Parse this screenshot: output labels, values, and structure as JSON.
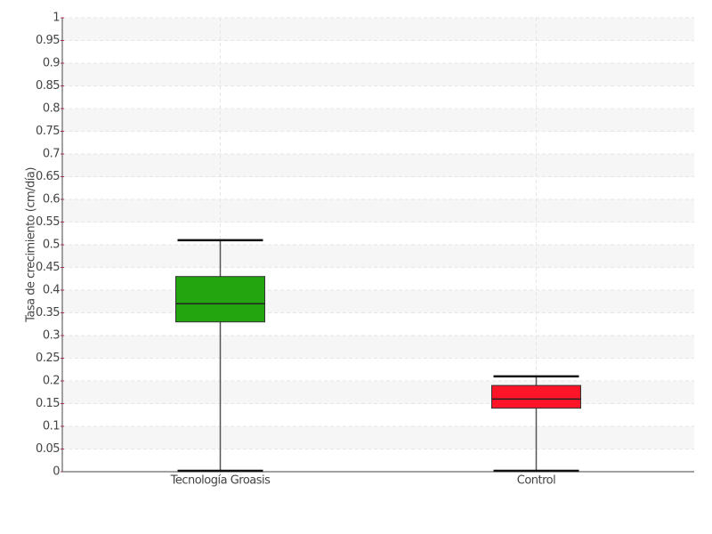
{
  "chart_data": {
    "type": "box",
    "y_label": "Tasa de crecimiento (cm/día)",
    "categories": [
      "Tecnología Groasis",
      "Control"
    ],
    "boxes": [
      {
        "min": 0,
        "q1": 0.33,
        "median": 0.37,
        "q3": 0.43,
        "max": 0.51,
        "color": "#22a50e"
      },
      {
        "min": 0,
        "q1": 0.14,
        "median": 0.16,
        "q3": 0.19,
        "max": 0.21,
        "color": "#ff1428"
      }
    ],
    "ylim": [
      0,
      1
    ],
    "yticks": [
      0,
      0.05,
      0.1,
      0.15,
      0.2,
      0.25,
      0.3,
      0.35,
      0.4,
      0.45,
      0.5,
      0.55,
      0.6,
      0.65,
      0.7,
      0.75,
      0.8,
      0.85,
      0.9,
      0.95,
      1
    ],
    "grid": true
  }
}
